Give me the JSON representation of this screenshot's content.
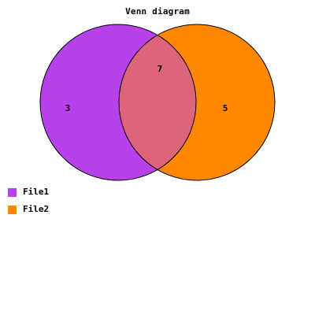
{
  "diagram": {
    "title": "Venn diagram",
    "sets": [
      {
        "name": "File1",
        "only_count": "3",
        "color": "#b941eb"
      },
      {
        "name": "File2",
        "only_count": "5",
        "color": "#ff8800"
      }
    ],
    "intersection": {
      "count": "7",
      "color": "#de6479"
    },
    "outline_color": "#000000"
  }
}
